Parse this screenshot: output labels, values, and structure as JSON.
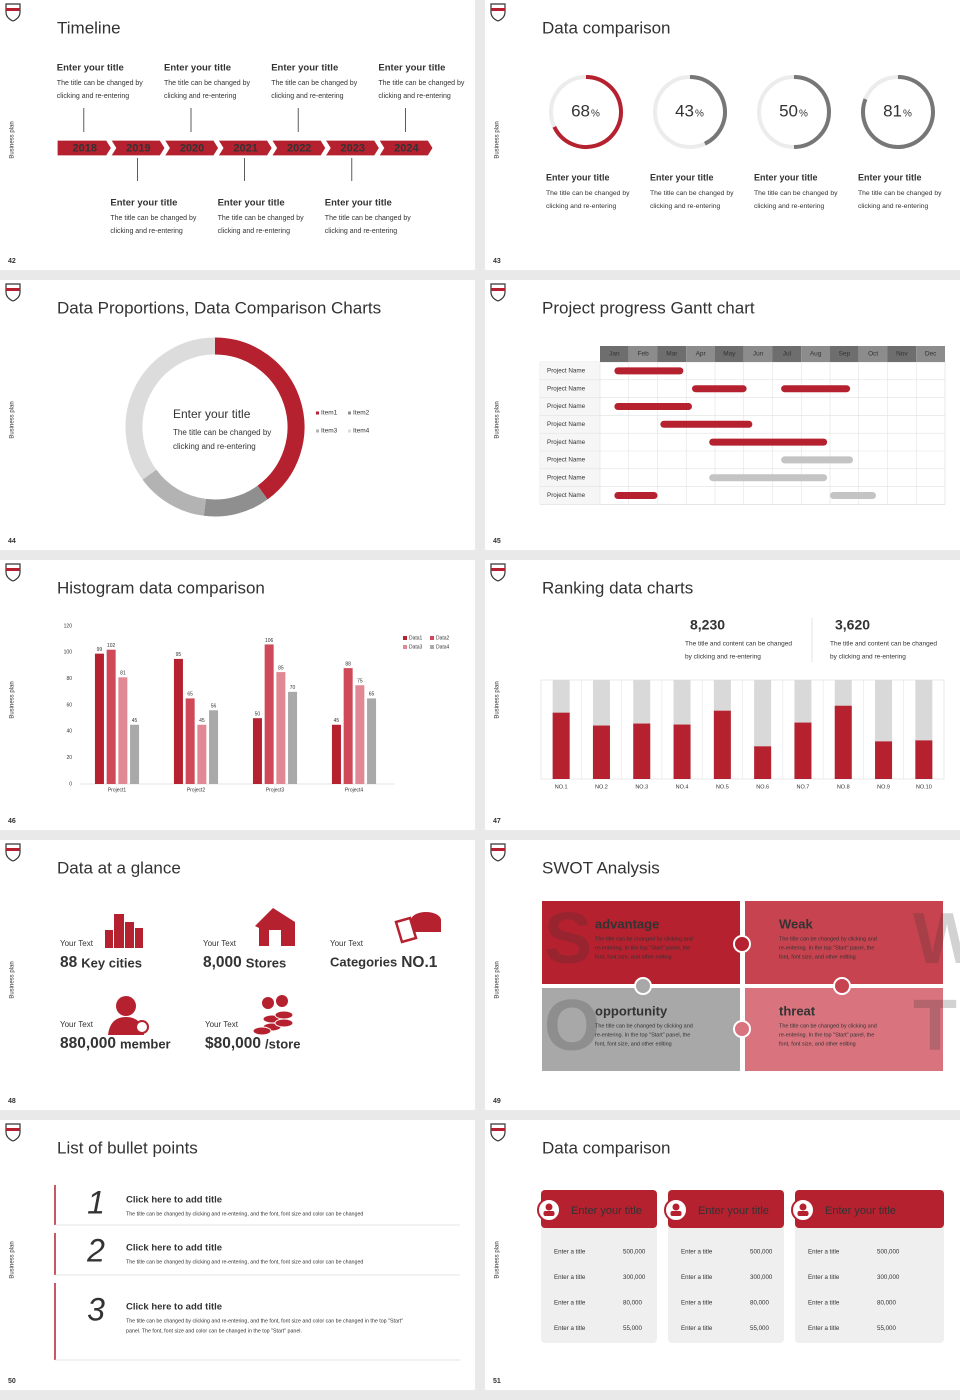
{
  "brand": "Business plan",
  "slides": [
    {
      "number": "42",
      "title": "Timeline",
      "events": [
        {
          "year": "2018",
          "title": "Enter your title",
          "text": [
            "The title can be changed by",
            "clicking and re-entering"
          ]
        },
        {
          "year": "2019",
          "title": "Enter your title",
          "text": [
            "The title can be changed by",
            "clicking and re-entering"
          ]
        },
        {
          "year": "2020",
          "title": "Enter your title",
          "text": [
            "The title can be changed by",
            "clicking and re-entering"
          ]
        },
        {
          "year": "2021",
          "title": "Enter your title",
          "text": [
            "The title can be changed by",
            "clicking and re-entering"
          ]
        },
        {
          "year": "2022",
          "title": "Enter your title",
          "text": [
            "The title can be changed by",
            "clicking and re-entering"
          ]
        },
        {
          "year": "2023",
          "title": "Enter your title",
          "text": [
            "The title can be changed by",
            "clicking and re-entering"
          ]
        },
        {
          "year": "2024",
          "title": "Enter your title",
          "text": [
            "The title can be changed by",
            "clicking and re-entering"
          ]
        }
      ]
    },
    {
      "number": "43",
      "title": "Data comparison",
      "chart": {
        "type": "ring",
        "unit": "%",
        "ylim": [
          0,
          100
        ],
        "values": [
          68,
          43,
          50,
          81
        ],
        "colors": [
          "#b5212f",
          "#777777",
          "#777777",
          "#777777"
        ]
      },
      "items": [
        {
          "title": "Enter your title",
          "text": [
            "The title can be changed by",
            "clicking and re-entering"
          ]
        },
        {
          "title": "Enter your title",
          "text": [
            "The title can be changed by",
            "clicking and re-entering"
          ]
        },
        {
          "title": "Enter your title",
          "text": [
            "The title can be changed by",
            "clicking and re-entering"
          ]
        },
        {
          "title": "Enter your title",
          "text": [
            "The title can be changed by",
            "clicking and re-entering"
          ]
        }
      ]
    },
    {
      "number": "44",
      "title": "Data Proportions, Data Comparison Charts",
      "chart": {
        "type": "donut",
        "categories": [
          "Item1",
          "Item2",
          "Item3",
          "Item4"
        ],
        "values": [
          40,
          12,
          13,
          35
        ],
        "colors": [
          "#b5212f",
          "#8f8f8f",
          "#b3b3b3",
          "#dcdcdc"
        ]
      },
      "center": {
        "title": "Enter your title",
        "text": [
          "The title can be changed by",
          "clicking and re-entering"
        ]
      }
    },
    {
      "number": "45",
      "title": "Project progress Gantt chart",
      "chart": {
        "type": "gantt",
        "xlim": [
          0,
          12
        ],
        "months": [
          "Jan",
          "Feb",
          "Mar",
          "Apr",
          "May",
          "Jun",
          "Jul",
          "Aug",
          "Sep",
          "Oct",
          "Nov",
          "Dec"
        ],
        "tasks": [
          {
            "name": "Project Name",
            "bars": [
              {
                "start": 0.5,
                "end": 2.9,
                "color": "#b5212f"
              }
            ]
          },
          {
            "name": "Project Name",
            "bars": [
              {
                "start": 3.2,
                "end": 5.1,
                "color": "#b5212f"
              },
              {
                "start": 6.3,
                "end": 8.7,
                "color": "#b5212f"
              }
            ]
          },
          {
            "name": "Project Name",
            "bars": [
              {
                "start": 0.5,
                "end": 3.2,
                "color": "#b5212f"
              }
            ]
          },
          {
            "name": "Project Name",
            "bars": [
              {
                "start": 2.1,
                "end": 5.3,
                "color": "#b5212f"
              }
            ]
          },
          {
            "name": "Project Name",
            "bars": [
              {
                "start": 3.8,
                "end": 7.9,
                "color": "#b5212f"
              }
            ]
          },
          {
            "name": "Project Name",
            "bars": [
              {
                "start": 6.3,
                "end": 8.8,
                "color": "#c4c4c4"
              }
            ]
          },
          {
            "name": "Project Name",
            "bars": [
              {
                "start": 3.8,
                "end": 7.9,
                "color": "#c4c4c4"
              }
            ]
          },
          {
            "name": "Project Name",
            "bars": [
              {
                "start": 0.5,
                "end": 2.0,
                "color": "#b5212f"
              },
              {
                "start": 8.0,
                "end": 9.6,
                "color": "#c4c4c4"
              }
            ]
          }
        ]
      }
    },
    {
      "number": "46",
      "title": "Histogram data comparison",
      "chart": {
        "type": "bar",
        "categories": [
          "Project1",
          "Project2",
          "Project3",
          "Project4"
        ],
        "ylim": [
          0,
          120
        ],
        "yticks": [
          0,
          20,
          40,
          60,
          80,
          100,
          120
        ],
        "series": [
          {
            "name": "Data1",
            "color": "#b5212f",
            "values": [
              99,
              95,
              50,
              45
            ]
          },
          {
            "name": "Data2",
            "color": "#cf4958",
            "values": [
              102,
              65,
              106,
              88
            ]
          },
          {
            "name": "Data3",
            "color": "#e08893",
            "values": [
              81,
              45,
              85,
              75
            ]
          },
          {
            "name": "Data4",
            "color": "#a9a9a9",
            "values": [
              45,
              56,
              70,
              65
            ]
          }
        ]
      }
    },
    {
      "number": "47",
      "title": "Ranking data charts",
      "stats": [
        {
          "value": "8,230",
          "color": "#b5212f",
          "text": [
            "The title and content can be changed",
            "by clicking and re-entering"
          ]
        },
        {
          "value": "3,620",
          "color": "#a6a6a6",
          "text": [
            "The title and content can be changed",
            "by clicking and re-entering"
          ]
        }
      ],
      "chart": {
        "type": "ranking",
        "ylim": [
          0,
          100
        ],
        "color": "#b5212f",
        "track_color": "#d9d9d9",
        "categories": [
          "NO.1",
          "NO.2",
          "NO.3",
          "NO.4",
          "NO.5",
          "NO.6",
          "NO.7",
          "NO.8",
          "NO.9",
          "NO.10"
        ],
        "values": [
          67,
          54,
          56,
          55,
          69,
          33,
          57,
          74,
          38,
          39
        ]
      }
    },
    {
      "number": "48",
      "title": "Data at a glance",
      "items": [
        {
          "label": "Your Text",
          "value": "88",
          "after": "Key cities"
        },
        {
          "label": "Your Text",
          "value": "8,000",
          "after": "Stores"
        },
        {
          "label": "Your Text",
          "before": "Categories",
          "value": "NO.1"
        },
        {
          "label": "Your Text",
          "value": "880,000",
          "after": "member"
        },
        {
          "label": "Your Text",
          "value": "$80,000",
          "after": "/store"
        }
      ]
    },
    {
      "number": "49",
      "title": "SWOT Analysis",
      "quadrants": [
        {
          "letter": "S",
          "title": "advantage",
          "color": "#b5212f",
          "text": [
            "The title can be changed by clicking and",
            "re-entering. In the top \"Start\" panel, the",
            "font, font size, and other editing"
          ]
        },
        {
          "letter": "W",
          "title": "Weak",
          "color": "#c7434f",
          "text": [
            "The title can be changed by clicking and",
            "re-entering. In the top \"Start\" panel, the",
            "font, font size, and other editing"
          ]
        },
        {
          "letter": "O",
          "title": "opportunity",
          "color": "#a8a8a8",
          "text": [
            "The title can be changed by clicking and",
            "re-entering. In the top \"Start\" panel, the",
            "font, font size, and other editing"
          ]
        },
        {
          "letter": "T",
          "title": "threat",
          "color": "#d9737e",
          "text": [
            "The title can be changed by clicking and",
            "re-entering. In the top \"Start\" panel, the",
            "font, font size, and other editing"
          ]
        }
      ]
    },
    {
      "number": "50",
      "title": "List of bullet points",
      "items": [
        {
          "number": "1",
          "title": "Click here to add title",
          "text": [
            "The title can be changed by clicking and re-entering, and the font, font size and color can be changed"
          ]
        },
        {
          "number": "2",
          "title": "Click here to add title",
          "text": [
            "The title can be changed by clicking and re-entering, and the font, font size and color can be changed"
          ]
        },
        {
          "number": "3",
          "title": "Click here to add title",
          "text": [
            "The title can be changed by clicking and re-entering, and the font, font size and color can be changed in the top \"Start\"",
            "panel. The font, font size and color can be changed in the top \"Start\" panel."
          ]
        }
      ]
    },
    {
      "number": "51",
      "title": "Data comparison",
      "cards": [
        {
          "title": "Enter your title",
          "rows": [
            {
              "label": "Enter a title",
              "value": "500,000"
            },
            {
              "label": "Enter a title",
              "value": "300,000"
            },
            {
              "label": "Enter a title",
              "value": "80,000"
            },
            {
              "label": "Enter a title",
              "value": "55,000"
            }
          ]
        },
        {
          "title": "Enter your title",
          "rows": [
            {
              "label": "Enter a title",
              "value": "500,000"
            },
            {
              "label": "Enter a title",
              "value": "300,000"
            },
            {
              "label": "Enter a title",
              "value": "80,000"
            },
            {
              "label": "Enter a title",
              "value": "55,000"
            }
          ]
        },
        {
          "title": "Enter your title",
          "rows": [
            {
              "label": "Enter a title",
              "value": "500,000"
            },
            {
              "label": "Enter a title",
              "value": "300,000"
            },
            {
              "label": "Enter a title",
              "value": "80,000"
            },
            {
              "label": "Enter a title",
              "value": "55,000"
            }
          ]
        }
      ]
    }
  ]
}
